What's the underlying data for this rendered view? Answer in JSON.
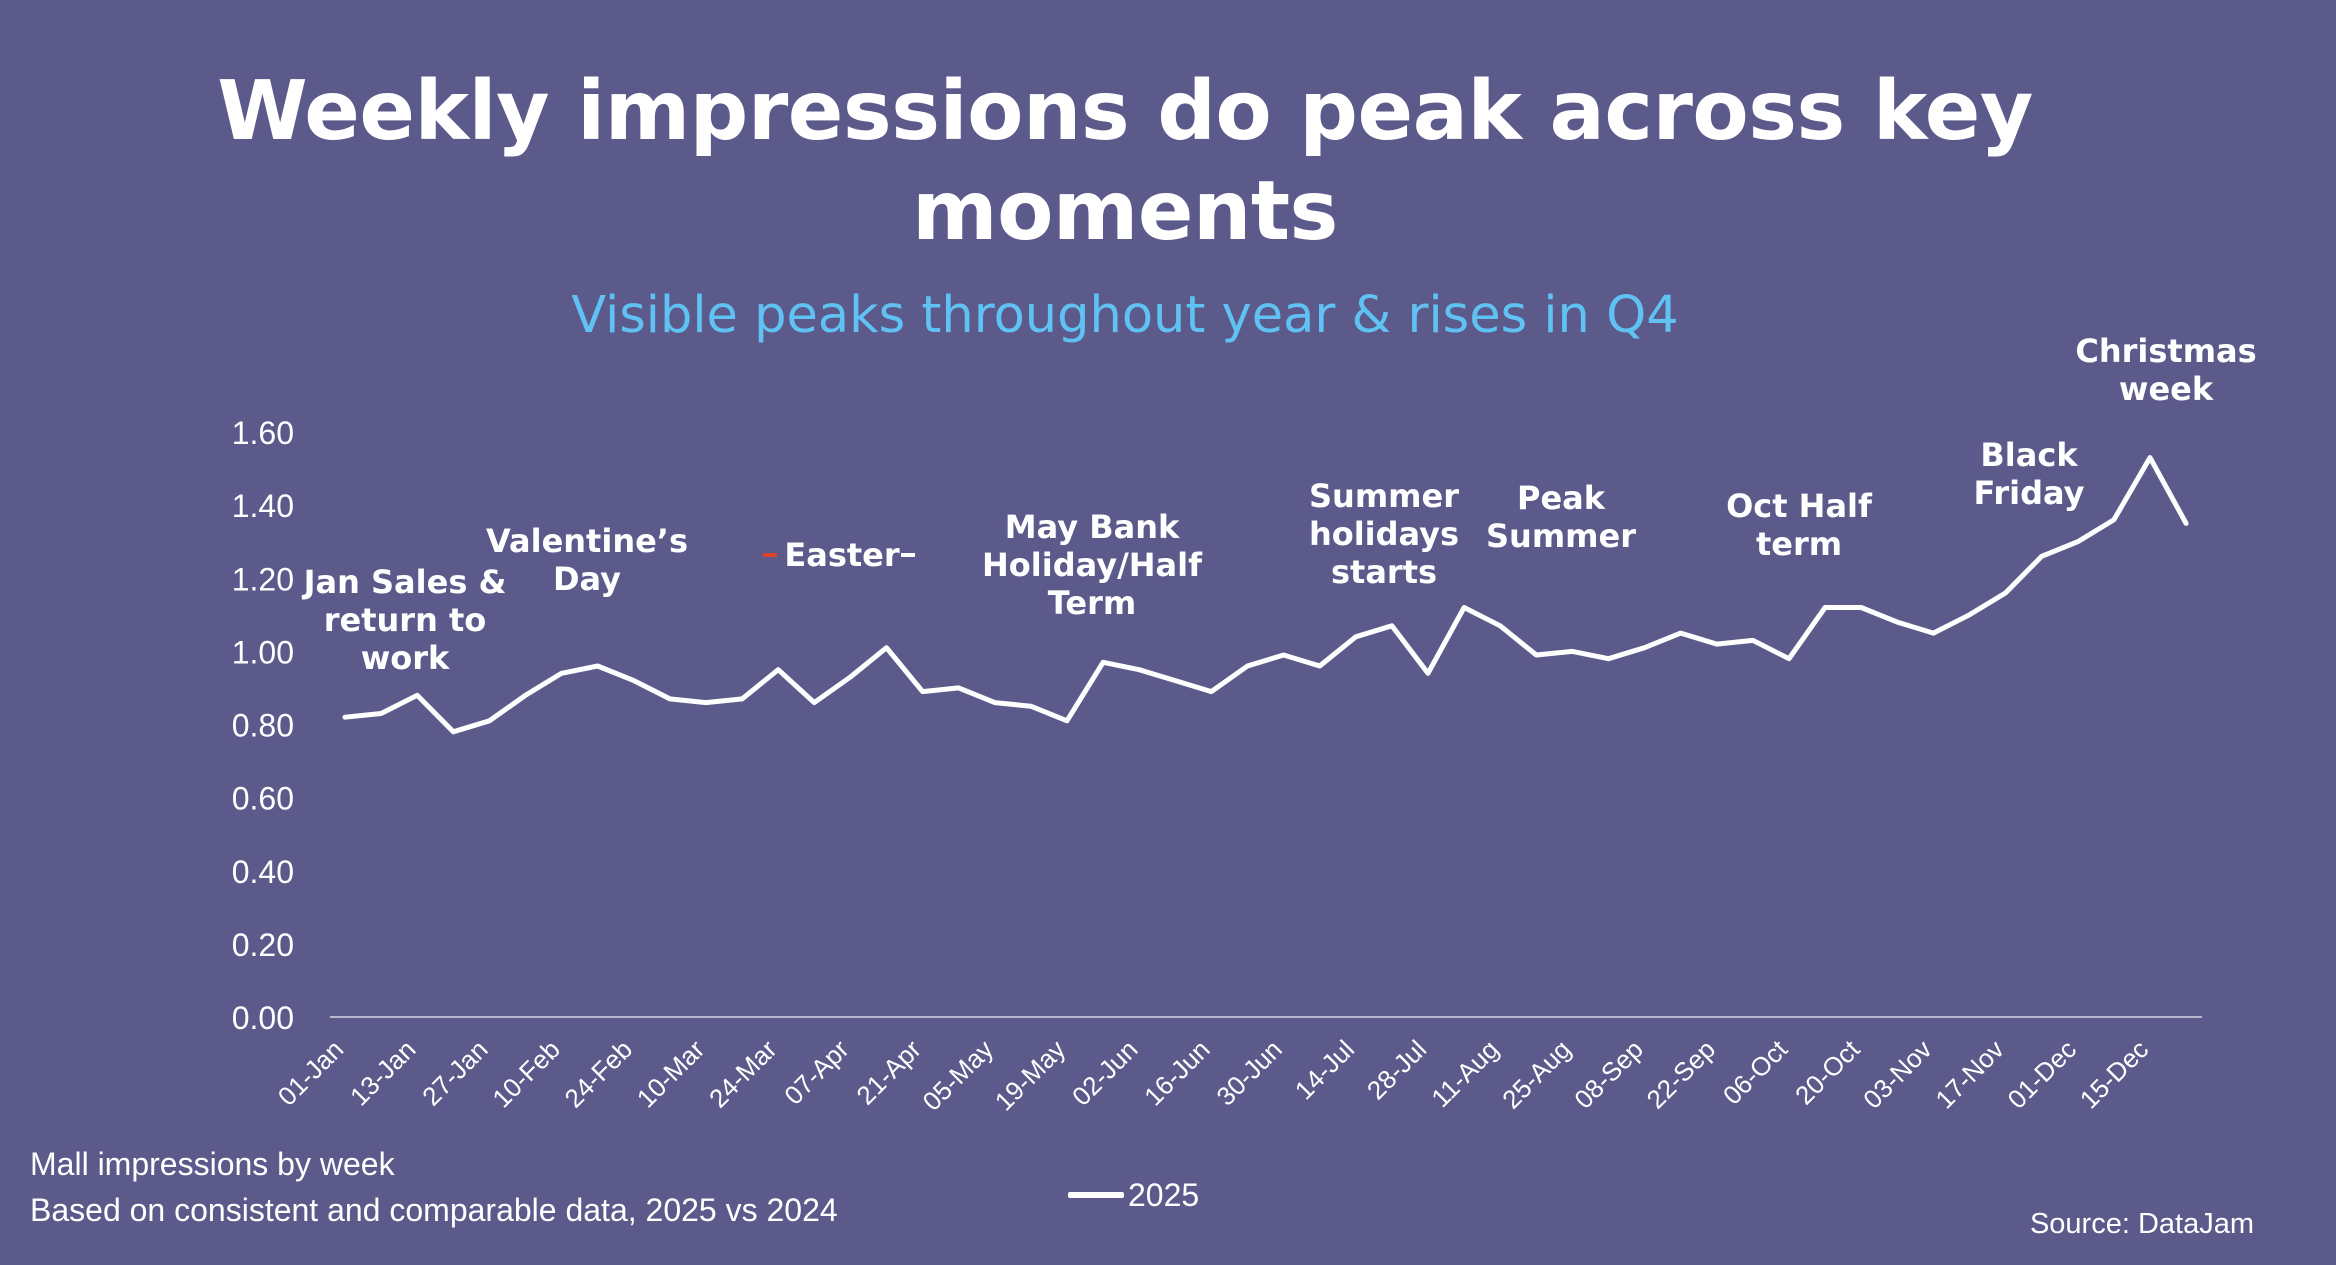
{
  "header": {
    "title": "Weekly impressions do peak across key moments",
    "subtitle": "Visible peaks throughout year & rises in Q4"
  },
  "footer": {
    "note_line1": "Mall impressions by week",
    "note_line2": "Based on consistent and comparable data, 2025 vs 2024",
    "source": "Source: DataJam"
  },
  "colors": {
    "background": "#5b5a8b",
    "line": "#ffffff",
    "subtitle": "#5fc2f2",
    "easter_dash": "#d9442b"
  },
  "chart_data": {
    "type": "line",
    "ylim": [
      0,
      1.6
    ],
    "y_ticks": [
      "0.00",
      "0.20",
      "0.40",
      "0.60",
      "0.80",
      "1.00",
      "1.20",
      "1.40",
      "1.60"
    ],
    "x_tick_labels": [
      "01-Jan",
      "13-Jan",
      "27-Jan",
      "10-Feb",
      "24-Feb",
      "10-Mar",
      "24-Mar",
      "07-Apr",
      "21-Apr",
      "05-May",
      "19-May",
      "02-Jun",
      "16-Jun",
      "30-Jun",
      "14-Jul",
      "28-Jul",
      "11-Aug",
      "25-Aug",
      "08-Sep",
      "22-Sep",
      "06-Oct",
      "20-Oct",
      "03-Nov",
      "17-Nov",
      "01-Dec",
      "15-Dec"
    ],
    "series": [
      {
        "name": "2025",
        "values": [
          0.82,
          0.83,
          0.88,
          0.78,
          0.81,
          0.88,
          0.94,
          0.96,
          0.92,
          0.87,
          0.86,
          0.87,
          0.95,
          0.86,
          0.93,
          1.01,
          0.89,
          0.9,
          0.86,
          0.85,
          0.81,
          0.97,
          0.95,
          0.92,
          0.89,
          0.96,
          0.99,
          0.96,
          1.04,
          1.07,
          0.94,
          1.12,
          1.07,
          0.99,
          1.0,
          0.98,
          1.01,
          1.05,
          1.02,
          1.03,
          0.98,
          1.12,
          1.12,
          1.08,
          1.05,
          1.1,
          1.16,
          1.26,
          1.3,
          1.36,
          1.53,
          1.35
        ]
      }
    ],
    "annotations": [
      {
        "text": "Jan Sales & return to work",
        "lines": [
          "Jan Sales &",
          "return to",
          "work"
        ]
      },
      {
        "text": "Valentine’s Day",
        "lines": [
          "Valentine’s",
          "Day"
        ]
      },
      {
        "text": "Easter",
        "lines": [
          "Easter"
        ]
      },
      {
        "text": "May Bank Holiday/Half Term",
        "lines": [
          "May Bank",
          "Holiday/Half",
          "Term"
        ]
      },
      {
        "text": "Summer holidays starts",
        "lines": [
          "Summer",
          "holidays",
          "starts"
        ]
      },
      {
        "text": "Peak Summer",
        "lines": [
          "Peak",
          "Summer"
        ]
      },
      {
        "text": "Oct Half term",
        "lines": [
          "Oct  Half",
          "term"
        ]
      },
      {
        "text": "Black Friday",
        "lines": [
          "Black",
          "Friday"
        ]
      },
      {
        "text": "Christmas week",
        "lines": [
          "Christmas",
          "week"
        ]
      }
    ],
    "legend": {
      "position": "bottom-center"
    }
  }
}
